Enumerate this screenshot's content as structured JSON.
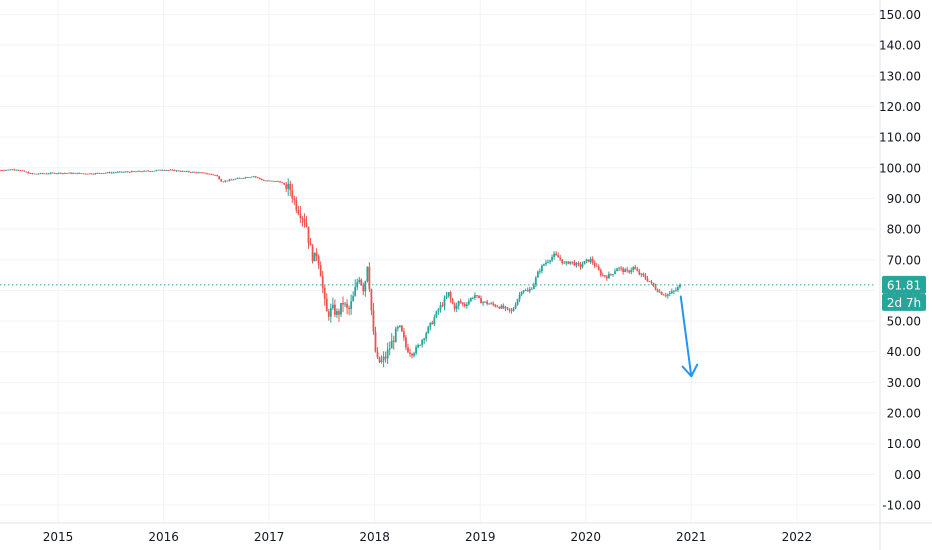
{
  "colors": {
    "background": "#ffffff",
    "grid": "#f0f3fa",
    "axis_border": "#e0e3eb",
    "up_candle": "#26a69a",
    "down_candle": "#ef5350",
    "price_line": "#26a69a",
    "price_box": "#26a69a",
    "arrow": "#2196f3",
    "text": "#131722"
  },
  "price_axis": {
    "labels": [
      "150.00",
      "140.00",
      "130.00",
      "120.00",
      "110.00",
      "100.00",
      "90.00",
      "80.00",
      "70.00",
      "60.00",
      "50.00",
      "40.00",
      "30.00",
      "20.00",
      "10.00",
      "0.00",
      "-10.00"
    ]
  },
  "time_axis": {
    "labels": [
      "2015",
      "2016",
      "2017",
      "2018",
      "2019",
      "2020",
      "2021",
      "2022"
    ]
  },
  "last_price": {
    "value_label": "61.81",
    "countdown_label": "2d 7h"
  },
  "chart_data": {
    "type": "candlestick",
    "title": "",
    "xlabel": "",
    "ylabel": "",
    "ylim": [
      -12,
      155
    ],
    "xlim": [
      2014.45,
      2022.75
    ],
    "grid": true,
    "price_path": [
      [
        2014.45,
        99.2
      ],
      [
        2014.6,
        99.5
      ],
      [
        2014.75,
        98.0
      ],
      [
        2015.0,
        98.3
      ],
      [
        2015.3,
        98.1
      ],
      [
        2015.6,
        98.6
      ],
      [
        2015.9,
        99.0
      ],
      [
        2016.0,
        99.4
      ],
      [
        2016.2,
        98.8
      ],
      [
        2016.4,
        98.2
      ],
      [
        2016.5,
        97.5
      ],
      [
        2016.55,
        95.5
      ],
      [
        2016.7,
        96.5
      ],
      [
        2016.85,
        97.3
      ],
      [
        2016.95,
        95.8
      ],
      [
        2017.1,
        95.5
      ],
      [
        2017.2,
        93.0
      ],
      [
        2017.25,
        88.0
      ],
      [
        2017.3,
        85.0
      ],
      [
        2017.35,
        82.0
      ],
      [
        2017.38,
        75.0
      ],
      [
        2017.42,
        70.0
      ],
      [
        2017.45,
        72.0
      ],
      [
        2017.48,
        68.0
      ],
      [
        2017.5,
        63.0
      ],
      [
        2017.52,
        57.0
      ],
      [
        2017.55,
        52.0
      ],
      [
        2017.6,
        54.0
      ],
      [
        2017.65,
        52.0
      ],
      [
        2017.7,
        56.0
      ],
      [
        2017.75,
        53.0
      ],
      [
        2017.8,
        58.0
      ],
      [
        2017.85,
        65.0
      ],
      [
        2017.9,
        60.0
      ],
      [
        2017.93,
        69.0
      ],
      [
        2017.96,
        58.0
      ],
      [
        2017.98,
        48.0
      ],
      [
        2018.0,
        42.0
      ],
      [
        2018.02,
        37.0
      ],
      [
        2018.06,
        36.5
      ],
      [
        2018.1,
        38.0
      ],
      [
        2018.15,
        42.0
      ],
      [
        2018.2,
        46.0
      ],
      [
        2018.23,
        48.5
      ],
      [
        2018.27,
        45.0
      ],
      [
        2018.3,
        41.0
      ],
      [
        2018.35,
        39.5
      ],
      [
        2018.4,
        41.0
      ],
      [
        2018.45,
        44.0
      ],
      [
        2018.5,
        47.0
      ],
      [
        2018.55,
        50.0
      ],
      [
        2018.6,
        53.5
      ],
      [
        2018.65,
        56.0
      ],
      [
        2018.7,
        59.0
      ],
      [
        2018.73,
        56.0
      ],
      [
        2018.77,
        54.0
      ],
      [
        2018.8,
        56.5
      ],
      [
        2018.85,
        55.0
      ],
      [
        2018.9,
        57.0
      ],
      [
        2018.95,
        58.5
      ],
      [
        2019.0,
        56.5
      ],
      [
        2019.1,
        55.5
      ],
      [
        2019.2,
        54.5
      ],
      [
        2019.3,
        53.0
      ],
      [
        2019.35,
        57.0
      ],
      [
        2019.4,
        60.5
      ],
      [
        2019.45,
        59.5
      ],
      [
        2019.5,
        61.5
      ],
      [
        2019.55,
        66.0
      ],
      [
        2019.6,
        68.5
      ],
      [
        2019.65,
        70.0
      ],
      [
        2019.7,
        71.5
      ],
      [
        2019.75,
        70.5
      ],
      [
        2019.8,
        68.5
      ],
      [
        2019.85,
        69.5
      ],
      [
        2019.9,
        68.5
      ],
      [
        2019.95,
        68.0
      ],
      [
        2020.0,
        69.5
      ],
      [
        2020.05,
        70.0
      ],
      [
        2020.1,
        67.5
      ],
      [
        2020.15,
        65.0
      ],
      [
        2020.2,
        64.5
      ],
      [
        2020.25,
        65.5
      ],
      [
        2020.3,
        67.5
      ],
      [
        2020.35,
        66.5
      ],
      [
        2020.4,
        66.0
      ],
      [
        2020.45,
        67.5
      ],
      [
        2020.5,
        65.5
      ],
      [
        2020.55,
        64.5
      ],
      [
        2020.6,
        63.0
      ],
      [
        2020.65,
        61.0
      ],
      [
        2020.7,
        59.5
      ],
      [
        2020.75,
        58.5
      ],
      [
        2020.8,
        59.0
      ],
      [
        2020.85,
        60.0
      ],
      [
        2020.9,
        61.81
      ]
    ]
  },
  "drawing": {
    "type": "arrow",
    "points": [
      [
        2020.9,
        58.0
      ],
      [
        2021.0,
        32.0
      ]
    ]
  }
}
